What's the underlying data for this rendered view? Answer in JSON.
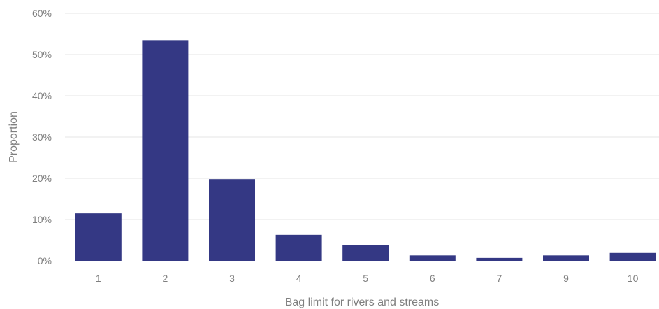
{
  "chart_data": {
    "type": "bar",
    "title": "",
    "xlabel": "Bag limit for rivers and streams",
    "ylabel": "Proportion",
    "categories": [
      "1",
      "2",
      "3",
      "4",
      "5",
      "6",
      "7",
      "9",
      "10"
    ],
    "values": [
      11.5,
      53.5,
      19.8,
      6.3,
      3.8,
      1.3,
      0.7,
      1.3,
      1.9
    ],
    "ylim": [
      0,
      60
    ],
    "yticks": [
      0,
      10,
      20,
      30,
      40,
      50,
      60
    ],
    "ytick_labels": [
      "0%",
      "10%",
      "20%",
      "30%",
      "40%",
      "50%",
      "60%"
    ],
    "grid": true,
    "legend": "none",
    "bar_color": "#343884",
    "grid_color": "#e6e6e6",
    "axis_color": "#bfbfbf",
    "text_color": "#7f7f7f"
  }
}
